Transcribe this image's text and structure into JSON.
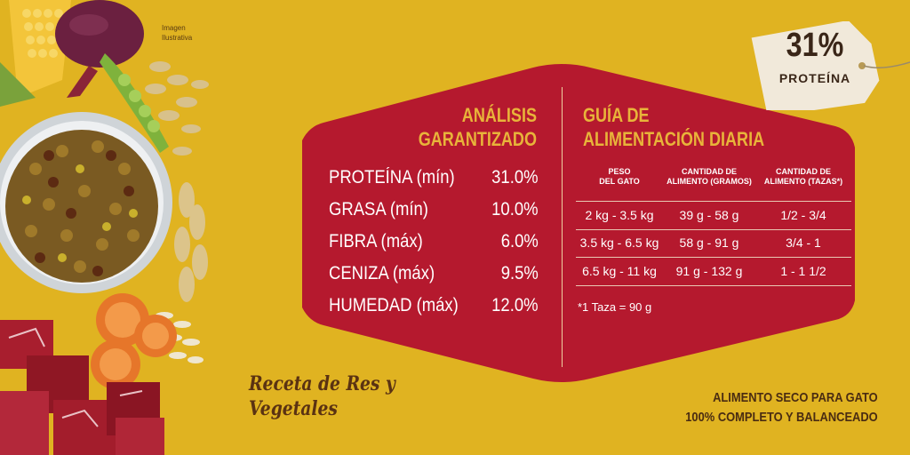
{
  "disclaimer": [
    "Imagen",
    "Ilustrativa"
  ],
  "tag": {
    "percent": "31%",
    "label": "PROTEÍNA"
  },
  "guaranteed_analysis": {
    "title_line1": "ANÁLISIS",
    "title_line2": "GARANTIZADO",
    "rows": [
      {
        "label": "PROTEÍNA (mín)",
        "value": "31.0%"
      },
      {
        "label": "GRASA (mín)",
        "value": "10.0%"
      },
      {
        "label": "FIBRA (máx)",
        "value": "6.0%"
      },
      {
        "label": "CENIZA (máx)",
        "value": "9.5%"
      },
      {
        "label": "HUMEDAD (máx)",
        "value": "12.0%"
      }
    ]
  },
  "feeding_guide": {
    "title_line1": "GUÍA DE",
    "title_line2": "ALIMENTACIÓN DIARIA",
    "headers": [
      [
        "PESO",
        "DEL GATO"
      ],
      [
        "CANTIDAD DE",
        "ALIMENTO (GRAMOS)"
      ],
      [
        "CANTIDAD DE",
        "ALIMENTO (TAZAS*)"
      ]
    ],
    "rows": [
      {
        "weight": "2 kg - 3.5 kg",
        "grams": "39 g - 58 g",
        "cups": "1/2  -  3/4"
      },
      {
        "weight": "3.5 kg - 6.5 kg",
        "grams": "58 g - 91 g",
        "cups": "3/4  -  1"
      },
      {
        "weight": "6.5 kg - 11 kg",
        "grams": "91 g - 132 g",
        "cups": "1  -  1 1/2"
      }
    ],
    "note": "*1 Taza = 90 g"
  },
  "recipe": [
    "Receta de Res y",
    "Vegetales"
  ],
  "claims": [
    "ALIMENTO SECO PARA GATO",
    "100% COMPLETO Y BALANCEADO"
  ],
  "colors": {
    "background": "#e0b321",
    "panel": "#b5192e",
    "title": "#e8b43a",
    "tag": "#f1e9da"
  }
}
